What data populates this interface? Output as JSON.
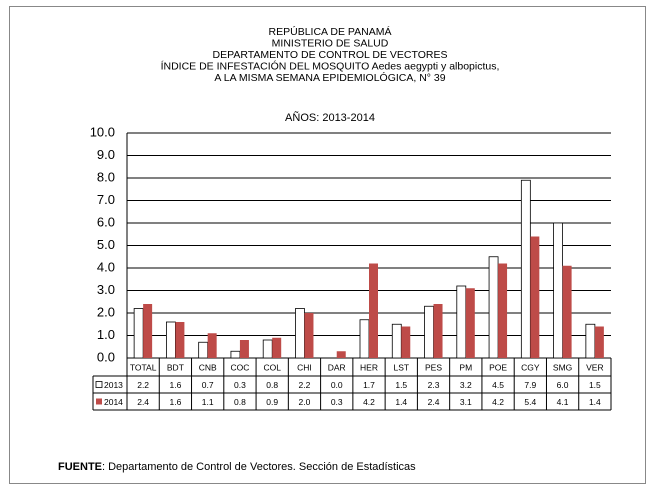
{
  "chart_data": {
    "type": "bar",
    "title_lines": [
      "REPÚBLICA DE PANAMÁ",
      "MINISTERIO DE SALUD",
      "DEPARTAMENTO DE CONTROL DE VECTORES",
      "ÍNDICE DE INFESTACIÓN DEL MOSQUITO Aedes aegypti y albopictus,",
      "A LA MISMA SEMANA EPIDEMIOLÓGICA, N° 39"
    ],
    "subtitle": "AÑOS: 2013-2014",
    "categories": [
      "TOTAL",
      "BDT",
      "CNB",
      "COC",
      "COL",
      "CHI",
      "DAR",
      "HER",
      "LST",
      "PES",
      "PM",
      "POE",
      "CGY",
      "SMG",
      "VER"
    ],
    "series": [
      {
        "name": "2013",
        "color": "#ffffff",
        "values": [
          2.2,
          1.6,
          0.7,
          0.3,
          0.8,
          2.2,
          0.0,
          1.7,
          1.5,
          2.3,
          3.2,
          4.5,
          7.9,
          6.0,
          1.5
        ],
        "value_labels": [
          "2.2",
          "1.6",
          "0.7",
          "0.3",
          "0.8",
          "2.2",
          "0.0",
          "1.7",
          "1.5",
          "2.3",
          "3.2",
          "4.5",
          "7.9",
          "6.0",
          "1.5"
        ]
      },
      {
        "name": "2014",
        "color": "#be4b48",
        "values": [
          2.4,
          1.6,
          1.1,
          0.8,
          0.9,
          2.0,
          0.3,
          4.2,
          1.4,
          2.4,
          3.1,
          4.2,
          5.4,
          4.1,
          1.4
        ],
        "value_labels": [
          "2.4",
          "1.6",
          "1.1",
          "0.8",
          "0.9",
          "2.0",
          "0.3",
          "4.2",
          "1.4",
          "2.4",
          "3.1",
          "4.2",
          "5.4",
          "4.1",
          "1.4"
        ]
      }
    ],
    "ylim": [
      0,
      10
    ],
    "yticks": [
      {
        "value": 0,
        "label": "0.0"
      },
      {
        "value": 1,
        "label": "1.0"
      },
      {
        "value": 2,
        "label": "2.0"
      },
      {
        "value": 3,
        "label": "3.0"
      },
      {
        "value": 4,
        "label": "4.0"
      },
      {
        "value": 5,
        "label": "5.0"
      },
      {
        "value": 6,
        "label": "6.0"
      },
      {
        "value": 7,
        "label": "7.0"
      },
      {
        "value": 8,
        "label": "8.0"
      },
      {
        "value": 9,
        "label": "9.0"
      },
      {
        "value": 10,
        "label": "10.0"
      }
    ],
    "grid": true,
    "source_label": "FUENTE",
    "source_text": ": Departamento de Control de Vectores.  Sección de Estadísticas"
  }
}
